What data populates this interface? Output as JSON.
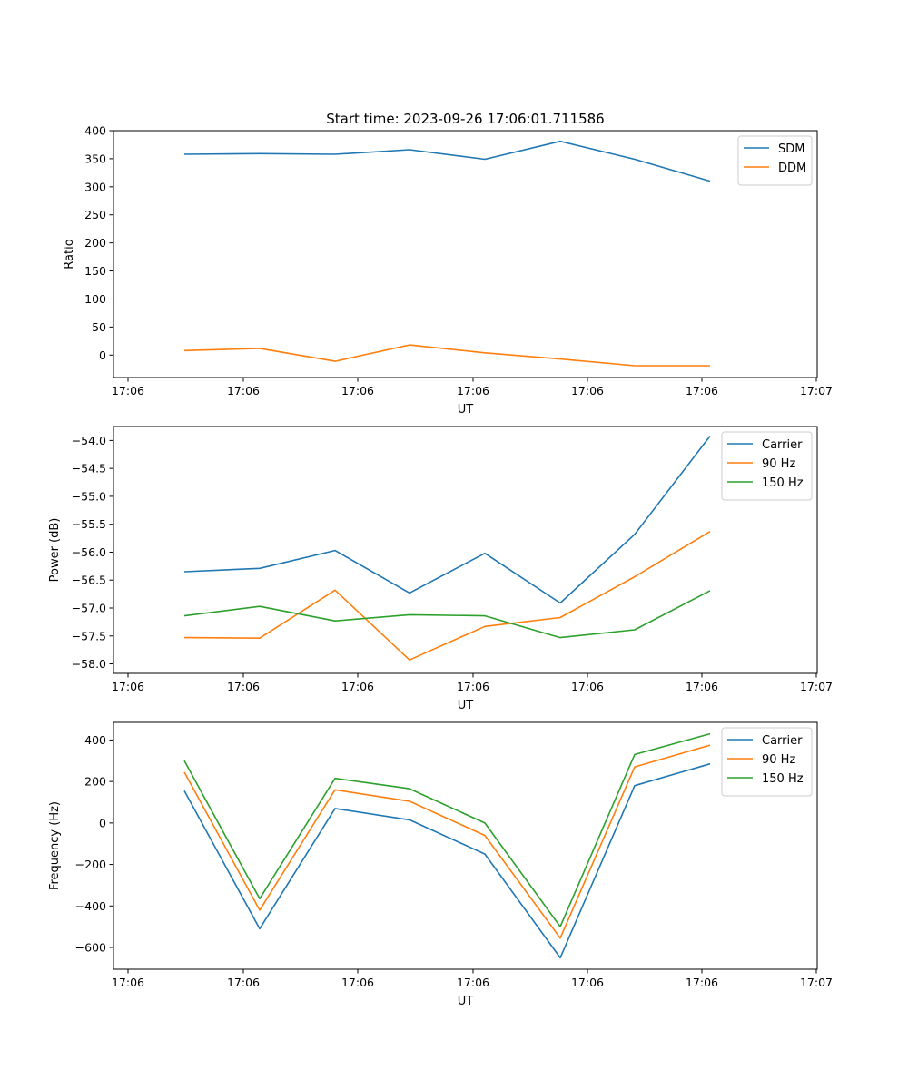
{
  "figure_title": "Start time: 2023-09-26 17:06:01.711586",
  "chart_data": [
    {
      "type": "line",
      "xlabel": "UT",
      "ylabel": "Ratio",
      "x_tick_labels": [
        "17:06",
        "17:06",
        "17:06",
        "17:06",
        "17:06",
        "17:06",
        "17:07"
      ],
      "y_ticks": [
        0,
        50,
        100,
        150,
        200,
        250,
        300,
        350,
        400
      ],
      "y_tick_labels": [
        "0",
        "50",
        "100",
        "150",
        "200",
        "250",
        "300",
        "350",
        "400"
      ],
      "ylim": [
        -40,
        400
      ],
      "legend_position": "upper-right",
      "series": [
        {
          "name": "SDM",
          "color": "#1f77b4",
          "values": [
            358,
            359,
            358,
            366,
            349,
            381,
            349,
            310
          ]
        },
        {
          "name": "DDM",
          "color": "#ff7f0e",
          "values": [
            8,
            12,
            -11,
            18,
            4,
            -7,
            -19,
            -19
          ]
        }
      ]
    },
    {
      "type": "line",
      "xlabel": "UT",
      "ylabel": "Power (dB)",
      "x_tick_labels": [
        "17:06",
        "17:06",
        "17:06",
        "17:06",
        "17:06",
        "17:06",
        "17:07"
      ],
      "y_ticks": [
        -58.0,
        -57.5,
        -57.0,
        -56.5,
        -56.0,
        -55.5,
        -55.0,
        -54.5,
        -54.0
      ],
      "y_tick_labels": [
        "−58.0",
        "−57.5",
        "−57.0",
        "−56.5",
        "−56.0",
        "−55.5",
        "−55.0",
        "−54.5",
        "−54.0"
      ],
      "ylim": [
        -58.17,
        -53.75
      ],
      "legend_position": "upper-right",
      "series": [
        {
          "name": "Carrier",
          "color": "#1f77b4",
          "values": [
            -56.35,
            -56.29,
            -55.97,
            -56.73,
            -56.02,
            -56.91,
            -55.68,
            -53.92
          ]
        },
        {
          "name": "90 Hz",
          "color": "#ff7f0e",
          "values": [
            -57.53,
            -57.54,
            -56.68,
            -57.93,
            -57.33,
            -57.17,
            -56.44,
            -55.63
          ]
        },
        {
          "name": "150 Hz",
          "color": "#2ca02c",
          "values": [
            -57.14,
            -56.97,
            -57.23,
            -57.12,
            -57.14,
            -57.53,
            -57.39,
            -56.69
          ]
        }
      ]
    },
    {
      "type": "line",
      "xlabel": "UT",
      "ylabel": "Frequency (Hz)",
      "x_tick_labels": [
        "17:06",
        "17:06",
        "17:06",
        "17:06",
        "17:06",
        "17:06",
        "17:07"
      ],
      "y_ticks": [
        -600,
        -400,
        -200,
        0,
        200,
        400
      ],
      "y_tick_labels": [
        "−600",
        "−400",
        "−200",
        "0",
        "200",
        "400"
      ],
      "ylim": [
        -705,
        485
      ],
      "legend_position": "upper-right",
      "series": [
        {
          "name": "Carrier",
          "color": "#1f77b4",
          "values": [
            155,
            -510,
            70,
            15,
            -150,
            -650,
            180,
            285
          ]
        },
        {
          "name": "90 Hz",
          "color": "#ff7f0e",
          "values": [
            245,
            -420,
            160,
            105,
            -60,
            -555,
            270,
            375
          ]
        },
        {
          "name": "150 Hz",
          "color": "#2ca02c",
          "values": [
            300,
            -365,
            215,
            165,
            0,
            -500,
            330,
            430
          ]
        }
      ]
    }
  ]
}
